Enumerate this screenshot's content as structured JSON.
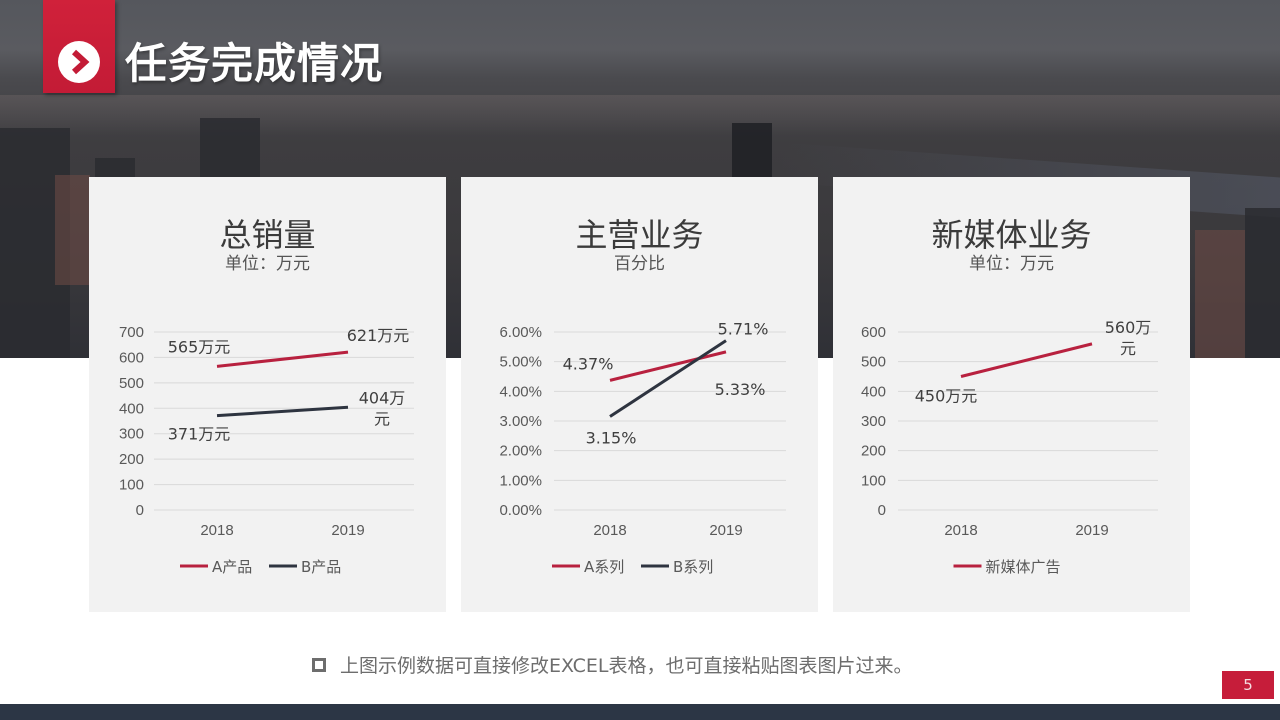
{
  "header": {
    "title": "任务完成情况",
    "icon": "chevron-right-circle-icon"
  },
  "colors": {
    "accent_red": "#c31b36",
    "series_red": "#b8213f",
    "series_dark": "#2e3440",
    "card_bg": "#f2f2f2",
    "footer_bar": "#2c3645"
  },
  "cards": [
    {
      "title": "总销量",
      "subtitle": "单位：万元",
      "legend": [
        "A产品",
        "B产品"
      ]
    },
    {
      "title": "主营业务",
      "subtitle": "百分比",
      "legend": [
        "A系列",
        "B系列"
      ]
    },
    {
      "title": "新媒体业务",
      "subtitle": "单位：万元",
      "legend": [
        "新媒体广告"
      ]
    }
  ],
  "chart_data": [
    {
      "type": "line",
      "title": "总销量",
      "subtitle": "单位：万元",
      "categories": [
        "2018",
        "2019"
      ],
      "series": [
        {
          "name": "A产品",
          "values": [
            565,
            621
          ],
          "labels": [
            "565万元",
            "621万元"
          ],
          "color": "#b8213f"
        },
        {
          "name": "B产品",
          "values": [
            371,
            404
          ],
          "labels": [
            "371万元",
            "404万元"
          ],
          "color": "#2e3440"
        }
      ],
      "yticks": [
        "0",
        "100",
        "200",
        "300",
        "400",
        "500",
        "600",
        "700"
      ],
      "ylim": [
        0,
        700
      ],
      "grid": true,
      "legend_position": "bottom"
    },
    {
      "type": "line",
      "title": "主营业务",
      "subtitle": "百分比",
      "categories": [
        "2018",
        "2019"
      ],
      "series": [
        {
          "name": "A系列",
          "values": [
            4.37,
            5.33
          ],
          "labels": [
            "4.37%",
            "5.33%"
          ],
          "color": "#b8213f"
        },
        {
          "name": "B系列",
          "values": [
            3.15,
            5.71
          ],
          "labels": [
            "3.15%",
            "5.71%"
          ],
          "color": "#2e3440"
        }
      ],
      "yticks": [
        "0.00%",
        "1.00%",
        "2.00%",
        "3.00%",
        "4.00%",
        "5.00%",
        "6.00%"
      ],
      "ylim": [
        0,
        6
      ],
      "grid": true,
      "legend_position": "bottom"
    },
    {
      "type": "line",
      "title": "新媒体业务",
      "subtitle": "单位：万元",
      "categories": [
        "2018",
        "2019"
      ],
      "series": [
        {
          "name": "新媒体广告",
          "values": [
            450,
            560
          ],
          "labels": [
            "450万元",
            "560万元"
          ],
          "color": "#b8213f"
        }
      ],
      "yticks": [
        "0",
        "100",
        "200",
        "300",
        "400",
        "500",
        "600"
      ],
      "ylim": [
        0,
        600
      ],
      "grid": true,
      "legend_position": "bottom"
    }
  ],
  "note": {
    "bullet_icon": "hollow-square-bullet-icon",
    "text": "上图示例数据可直接修改EXCEL表格，也可直接粘贴图表图片过来。"
  },
  "page_number": "5"
}
